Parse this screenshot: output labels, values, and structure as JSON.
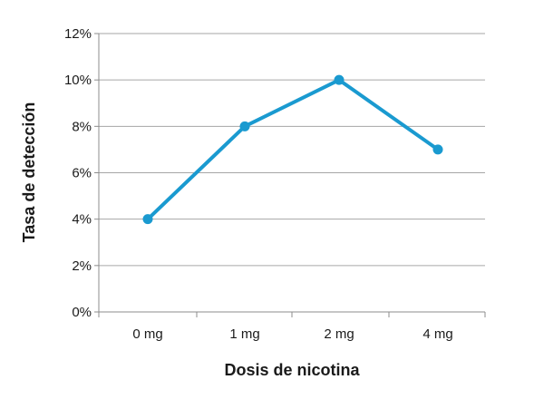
{
  "chart_data": {
    "type": "line",
    "title": "",
    "xlabel": "Dosis de nicotina",
    "ylabel": "Tasa de detección",
    "categories": [
      "0 mg",
      "1 mg",
      "2 mg",
      "4 mg"
    ],
    "series": [
      {
        "values": [
          4,
          8,
          10,
          7
        ],
        "color": "#1a9ad0"
      }
    ],
    "ylim": [
      0,
      12
    ],
    "yticks": [
      0,
      2,
      4,
      6,
      8,
      10,
      12
    ],
    "ytick_labels": [
      "0%",
      "2%",
      "4%",
      "6%",
      "8%",
      "10%",
      "12%"
    ],
    "grid": true,
    "legend": "none"
  }
}
